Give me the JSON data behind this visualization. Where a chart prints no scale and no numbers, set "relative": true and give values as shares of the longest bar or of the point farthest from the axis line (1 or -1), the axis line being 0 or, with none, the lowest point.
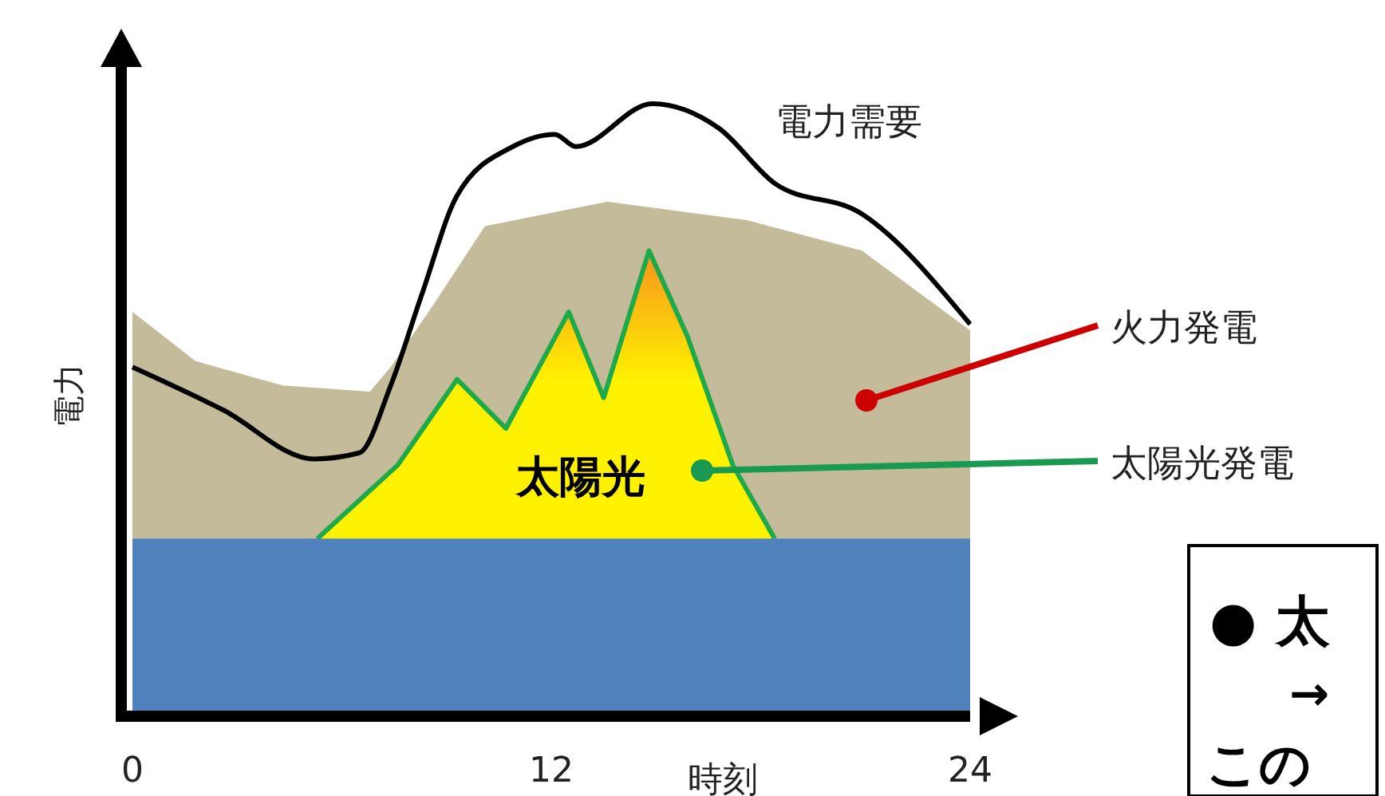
{
  "chart_data": {
    "type": "area",
    "xlabel": "時刻",
    "ylabel": "電力",
    "relative": true,
    "xlim": [
      0,
      24
    ],
    "xticks": [
      0,
      12,
      24
    ],
    "tick_labels": "x",
    "legend": false,
    "series": [
      {
        "name": "火力発電",
        "color": "#c4bb9b",
        "x": [
          0,
          1.8,
          4.3,
          6.8,
          7.4,
          8.6,
          10.1,
          13.6,
          17.6,
          20.9,
          24
        ],
        "values": [
          0.66,
          0.58,
          0.54,
          0.53,
          0.57,
          0.67,
          0.8,
          0.84,
          0.81,
          0.76,
          0.63
        ]
      },
      {
        "name": "太陽光発電",
        "color": "#fff200",
        "x": [
          5.3,
          7.6,
          9.3,
          10.7,
          12.5,
          13.5,
          14.8,
          15.9,
          17.2,
          18.4
        ],
        "values": [
          0.29,
          0.41,
          0.55,
          0.47,
          0.66,
          0.52,
          0.76,
          0.62,
          0.41,
          0.29
        ]
      },
      {
        "name": "電力需要",
        "type": "line",
        "color": "#000000",
        "line_style": "solid",
        "x": [
          0,
          2.6,
          5.2,
          6.5,
          7.4,
          8.3,
          9.3,
          10.9,
          12.1,
          12.7,
          14.9,
          16.8,
          18.4,
          20.9,
          24
        ],
        "values": [
          0.57,
          0.5,
          0.42,
          0.43,
          0.54,
          0.69,
          0.85,
          0.93,
          0.95,
          0.93,
          1,
          0.96,
          0.87,
          0.82,
          0.64
        ]
      }
    ],
    "bands": [
      {
        "axis": "y",
        "from": 0,
        "to": 0.29,
        "color": "#4f81bd"
      }
    ],
    "annotations": [
      "太陽光",
      "● 太",
      "→",
      "この"
    ]
  }
}
